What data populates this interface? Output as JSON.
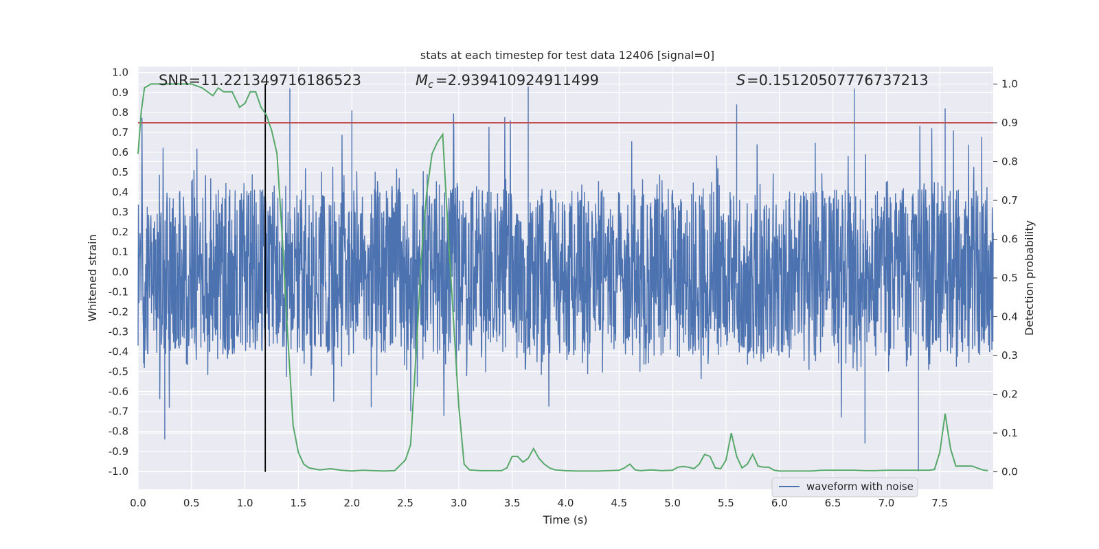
{
  "chart_data": {
    "type": "line",
    "title": "stats at each timestep for test data 12406 [signal=0]",
    "xlabel": "Time (s)",
    "ylabel_left": "Whitened strain",
    "ylabel_right": "Detection probability",
    "xlim": [
      0.0,
      8.0
    ],
    "ylim_left": [
      -1.09,
      1.03
    ],
    "ylim_right": [
      -0.045,
      1.045
    ],
    "x_ticks": [
      "0.0",
      "0.5",
      "1.0",
      "1.5",
      "2.0",
      "2.5",
      "3.0",
      "3.5",
      "4.0",
      "4.5",
      "5.0",
      "5.5",
      "6.0",
      "6.5",
      "7.0",
      "7.5"
    ],
    "y_ticks_left": [
      "1.0",
      "0.9",
      "0.8",
      "0.7",
      "0.6",
      "0.5",
      "0.4",
      "0.3",
      "0.2",
      "0.1",
      "0.0",
      "-0.1",
      "-0.2",
      "-0.3",
      "-0.4",
      "-0.5",
      "-0.6",
      "-0.7",
      "-0.8",
      "-0.9",
      "-1.0"
    ],
    "y_ticks_right": [
      "1.0",
      "0.9",
      "0.8",
      "0.7",
      "0.6",
      "0.5",
      "0.4",
      "0.3",
      "0.2",
      "0.1",
      "0.0"
    ],
    "grid": true,
    "annotations": {
      "snr": "SNR=11.221349716186523",
      "mc": "=2.939410924911499",
      "s": "=0.15120507776737213"
    },
    "threshold_right": 0.9,
    "marker_x": 1.19,
    "waveform_amplitude_estimate": {
      "core_range": [
        -0.42,
        0.42
      ],
      "notable_spikes": [
        {
          "x": 1.42,
          "y": 0.92
        },
        {
          "x": 2.0,
          "y": 0.81
        },
        {
          "x": 3.65,
          "y": 0.93
        },
        {
          "x": 5.6,
          "y": 0.84
        },
        {
          "x": 6.7,
          "y": 0.92
        },
        {
          "x": 7.55,
          "y": 0.82
        },
        {
          "x": 0.25,
          "y": -0.84
        },
        {
          "x": 7.3,
          "y": -1.0
        },
        {
          "x": 6.8,
          "y": -0.86
        }
      ]
    },
    "series": [
      {
        "name": "waveform with noise",
        "axis": "left",
        "color": "#4c72b0",
        "values": "dense noise trace (~8000 samples, amplitude mostly within ±0.45 with spikes to ~±0.9)"
      },
      {
        "name": "detection probability",
        "axis": "right",
        "color": "#55a868",
        "x": [
          0.0,
          0.03,
          0.06,
          0.12,
          0.2,
          0.3,
          0.4,
          0.5,
          0.6,
          0.7,
          0.75,
          0.8,
          0.88,
          0.95,
          1.0,
          1.05,
          1.1,
          1.15,
          1.2,
          1.25,
          1.3,
          1.35,
          1.4,
          1.45,
          1.5,
          1.55,
          1.6,
          1.7,
          1.8,
          1.9,
          2.0,
          2.1,
          2.2,
          2.3,
          2.4,
          2.5,
          2.55,
          2.6,
          2.65,
          2.7,
          2.75,
          2.8,
          2.85,
          2.9,
          3.0,
          3.05,
          3.1,
          3.2,
          3.3,
          3.4,
          3.45,
          3.5,
          3.55,
          3.6,
          3.65,
          3.7,
          3.75,
          3.8,
          3.85,
          3.9,
          4.0,
          4.1,
          4.2,
          4.3,
          4.4,
          4.5,
          4.55,
          4.6,
          4.65,
          4.7,
          4.8,
          4.9,
          5.0,
          5.05,
          5.1,
          5.15,
          5.2,
          5.25,
          5.3,
          5.35,
          5.4,
          5.45,
          5.5,
          5.55,
          5.6,
          5.65,
          5.7,
          5.75,
          5.8,
          5.85,
          5.9,
          5.95,
          6.0,
          6.1,
          6.15,
          6.2,
          6.3,
          6.4,
          6.5,
          6.6,
          6.7,
          6.8,
          6.9,
          7.0,
          7.1,
          7.2,
          7.3,
          7.4,
          7.45,
          7.5,
          7.55,
          7.6,
          7.65,
          7.7,
          7.8,
          7.9,
          7.95
        ],
        "values": [
          0.82,
          0.93,
          0.99,
          1.0,
          1.0,
          1.0,
          1.0,
          1.0,
          0.99,
          0.97,
          0.99,
          0.98,
          0.98,
          0.94,
          0.95,
          0.98,
          0.98,
          0.94,
          0.92,
          0.88,
          0.82,
          0.6,
          0.35,
          0.12,
          0.05,
          0.02,
          0.01,
          0.005,
          0.008,
          0.004,
          0.002,
          0.004,
          0.003,
          0.002,
          0.003,
          0.03,
          0.07,
          0.3,
          0.55,
          0.72,
          0.82,
          0.85,
          0.87,
          0.62,
          0.17,
          0.02,
          0.005,
          0.003,
          0.003,
          0.003,
          0.01,
          0.04,
          0.04,
          0.025,
          0.035,
          0.06,
          0.035,
          0.02,
          0.01,
          0.005,
          0.003,
          0.002,
          0.002,
          0.002,
          0.003,
          0.004,
          0.01,
          0.02,
          0.005,
          0.003,
          0.005,
          0.003,
          0.004,
          0.012,
          0.014,
          0.012,
          0.008,
          0.02,
          0.045,
          0.04,
          0.01,
          0.008,
          0.03,
          0.1,
          0.04,
          0.01,
          0.02,
          0.045,
          0.015,
          0.012,
          0.012,
          0.004,
          0.002,
          0.002,
          0.002,
          0.002,
          0.002,
          0.004,
          0.004,
          0.004,
          0.004,
          0.003,
          0.003,
          0.004,
          0.004,
          0.004,
          0.004,
          0.004,
          0.006,
          0.05,
          0.15,
          0.06,
          0.015,
          0.015,
          0.015,
          0.005,
          0.003
        ]
      }
    ],
    "legend": {
      "entries": [
        "waveform with noise"
      ],
      "placement": "bottom-right"
    }
  }
}
